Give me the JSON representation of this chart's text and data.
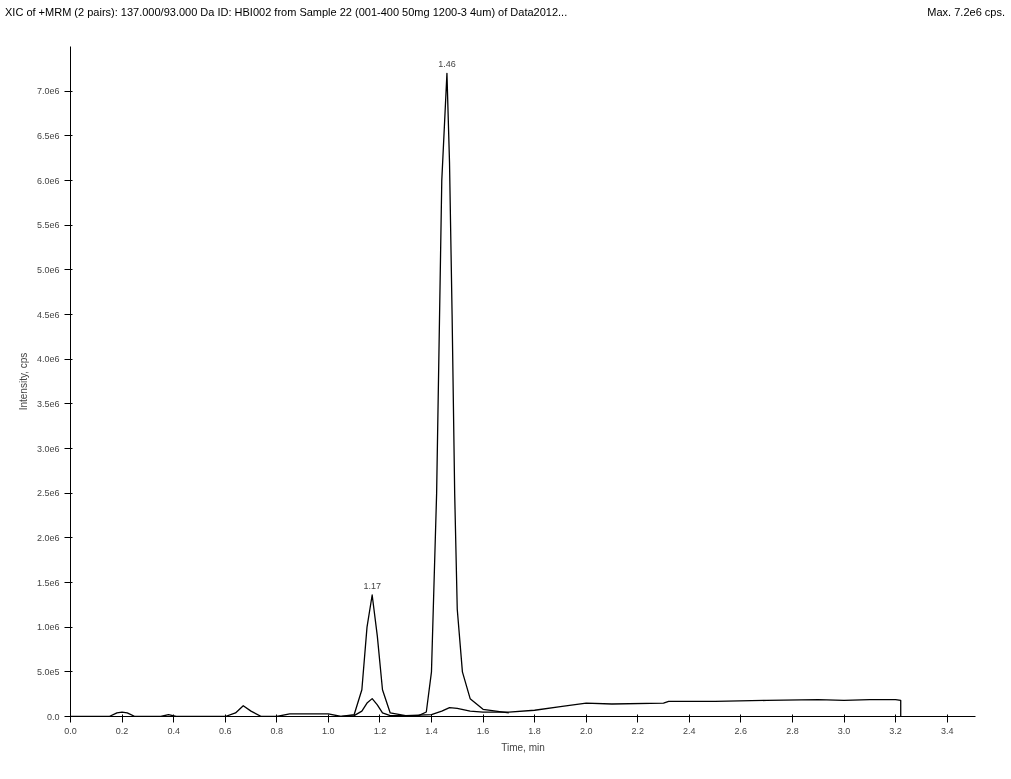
{
  "chart_data": {
    "type": "line",
    "title": "XIC of +MRM (2 pairs): 137.000/93.000 Da ID: HBI002 from Sample 22 (001-400 50mg 1200-3 4um) of Data2012...",
    "xlabel": "Time, min",
    "ylabel": "Intensity, cps",
    "annotations": [
      "Max. 7.2e6 cps.",
      {
        "text": "1.17",
        "x": 1.17,
        "y": 1360000
      },
      {
        "text": "1.46",
        "x": 1.46,
        "y": 7200000
      }
    ],
    "series": [
      {
        "color": "#000000",
        "x": [
          0.0,
          0.15,
          0.18,
          0.2,
          0.22,
          0.25,
          0.35,
          0.38,
          0.41,
          0.6,
          0.64,
          0.67,
          0.7,
          0.74,
          0.8,
          0.85,
          1.0,
          1.05,
          1.1,
          1.13,
          1.15,
          1.17,
          1.19,
          1.21,
          1.24,
          1.3,
          1.35,
          1.38,
          1.4,
          1.42,
          1.44,
          1.46,
          1.47,
          1.48,
          1.49,
          1.5,
          1.52,
          1.55,
          1.6,
          1.7
        ],
        "values": [
          0,
          0,
          40000,
          50000,
          40000,
          0,
          0,
          20000,
          0,
          0,
          40000,
          120000,
          60000,
          0,
          0,
          30000,
          30000,
          0,
          20000,
          300000,
          1000000,
          1360000,
          900000,
          300000,
          40000,
          10000,
          10000,
          50000,
          500000,
          2500000,
          6000000,
          7200000,
          6200000,
          4500000,
          2500000,
          1200000,
          500000,
          200000,
          80000,
          40000
        ]
      },
      {
        "color": "#000000",
        "x": [
          1.05,
          1.1,
          1.13,
          1.15,
          1.17,
          1.19,
          1.21,
          1.24,
          1.3,
          1.4,
          1.44,
          1.47,
          1.5,
          1.55,
          1.6,
          1.7,
          1.8,
          1.9,
          2.0,
          2.1,
          2.3,
          2.32,
          2.5,
          2.7,
          2.9,
          3.0,
          3.1,
          3.2,
          3.22,
          3.22
        ],
        "values": [
          0,
          10000,
          60000,
          150000,
          200000,
          130000,
          40000,
          10000,
          10000,
          20000,
          60000,
          100000,
          90000,
          60000,
          50000,
          50000,
          70000,
          110000,
          150000,
          140000,
          150000,
          170000,
          170000,
          180000,
          190000,
          180000,
          190000,
          190000,
          180000,
          0
        ]
      }
    ],
    "xlim": [
      0,
      3.51
    ],
    "ylim": [
      0,
      7500000
    ],
    "xticks": [
      {
        "value": 0,
        "label": "0.0"
      },
      {
        "value": 0.2,
        "label": "0.2"
      },
      {
        "value": 0.4,
        "label": "0.4"
      },
      {
        "value": 0.6,
        "label": "0.6"
      },
      {
        "value": 0.8,
        "label": "0.8"
      },
      {
        "value": 1.0,
        "label": "1.0"
      },
      {
        "value": 1.2,
        "label": "1.2"
      },
      {
        "value": 1.4,
        "label": "1.4"
      },
      {
        "value": 1.6,
        "label": "1.6"
      },
      {
        "value": 1.8,
        "label": "1.8"
      },
      {
        "value": 2.0,
        "label": "2.0"
      },
      {
        "value": 2.2,
        "label": "2.2"
      },
      {
        "value": 2.4,
        "label": "2.4"
      },
      {
        "value": 2.6,
        "label": "2.6"
      },
      {
        "value": 2.8,
        "label": "2.8"
      },
      {
        "value": 3.0,
        "label": "3.0"
      },
      {
        "value": 3.2,
        "label": "3.2"
      },
      {
        "value": 3.4,
        "label": "3.4"
      }
    ],
    "yticks": [
      {
        "value": 0,
        "label": "0.0"
      },
      {
        "value": 500000,
        "label": "5.0e5"
      },
      {
        "value": 1000000,
        "label": "1.0e6"
      },
      {
        "value": 1500000,
        "label": "1.5e6"
      },
      {
        "value": 2000000,
        "label": "2.0e6"
      },
      {
        "value": 2500000,
        "label": "2.5e6"
      },
      {
        "value": 3000000,
        "label": "3.0e6"
      },
      {
        "value": 3500000,
        "label": "3.5e6"
      },
      {
        "value": 4000000,
        "label": "4.0e6"
      },
      {
        "value": 4500000,
        "label": "4.5e6"
      },
      {
        "value": 5000000,
        "label": "5.0e6"
      },
      {
        "value": 5500000,
        "label": "5.5e6"
      },
      {
        "value": 6000000,
        "label": "6.0e6"
      },
      {
        "value": 6500000,
        "label": "6.5e6"
      },
      {
        "value": 7000000,
        "label": "7.0e6"
      }
    ],
    "grid": false
  }
}
